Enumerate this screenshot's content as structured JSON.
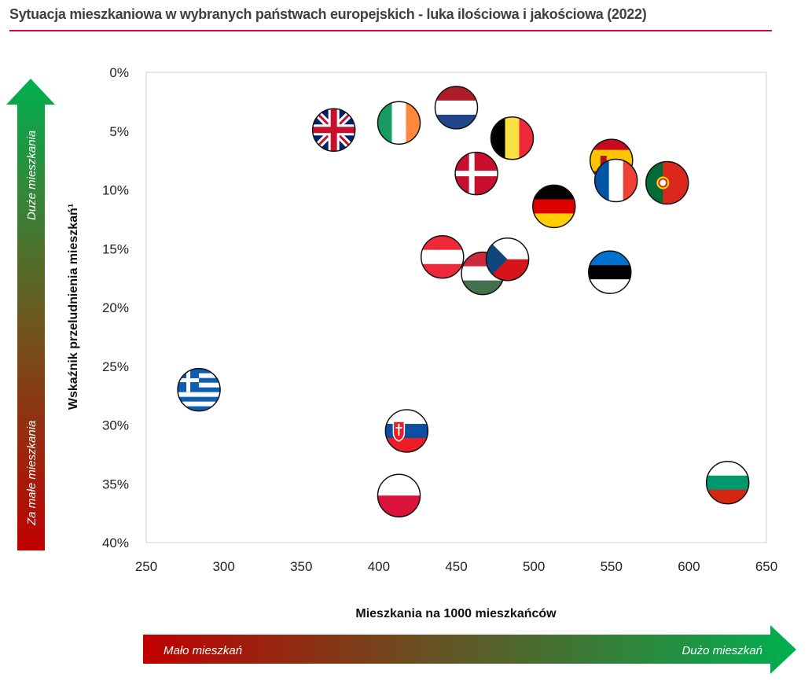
{
  "chart_data": {
    "type": "scatter",
    "title": "Sytuacja mieszkaniowa w wybranych państwach europejskich - luka ilościowa i jakościowa (2022)",
    "xlabel": "Mieszkania na 1000 mieszkańców",
    "ylabel": "Wskaźnik przeludnienia mieszkań¹",
    "xlim": [
      250,
      650
    ],
    "ylim": [
      0,
      40
    ],
    "y_inverted": true,
    "xticks": [
      "250",
      "300",
      "350",
      "400",
      "450",
      "500",
      "550",
      "600",
      "650"
    ],
    "yticks": [
      "0%",
      "5%",
      "10%",
      "15%",
      "20%",
      "25%",
      "30%",
      "35%",
      "40%"
    ],
    "grid": false,
    "arrows": {
      "x_low": "Mało mieszkań",
      "x_high": "Dużo mieszkań",
      "y_high": "Duże mieszkania",
      "y_low": "Za małe mieszkania"
    },
    "points": [
      {
        "country": "uk",
        "x": 371,
        "y": 4.9
      },
      {
        "country": "ireland",
        "x": 413,
        "y": 4.3
      },
      {
        "country": "netherlands",
        "x": 450,
        "y": 3.0
      },
      {
        "country": "belgium",
        "x": 486,
        "y": 5.6
      },
      {
        "country": "denmark",
        "x": 463,
        "y": 8.6
      },
      {
        "country": "spain",
        "x": 550,
        "y": 7.5
      },
      {
        "country": "france",
        "x": 553,
        "y": 9.2
      },
      {
        "country": "portugal",
        "x": 586,
        "y": 9.4
      },
      {
        "country": "germany",
        "x": 513,
        "y": 11.4
      },
      {
        "country": "austria",
        "x": 441,
        "y": 15.7
      },
      {
        "country": "hungary",
        "x": 467,
        "y": 17.1
      },
      {
        "country": "czechia",
        "x": 483,
        "y": 15.9
      },
      {
        "country": "estonia",
        "x": 549,
        "y": 17.0
      },
      {
        "country": "greece",
        "x": 284,
        "y": 27.0
      },
      {
        "country": "slovakia",
        "x": 418,
        "y": 30.5
      },
      {
        "country": "poland",
        "x": 413,
        "y": 36.0
      },
      {
        "country": "bulgaria",
        "x": 625,
        "y": 34.9
      }
    ]
  }
}
